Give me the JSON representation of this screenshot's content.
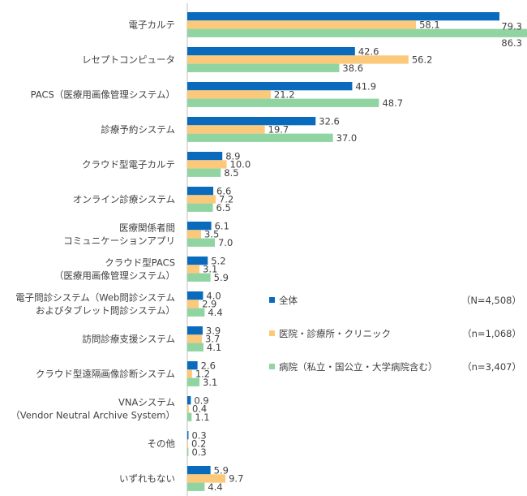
{
  "chart_data": {
    "type": "bar",
    "orientation": "horizontal",
    "categories": [
      [
        "電子カルテ"
      ],
      [
        "レセプトコンピュータ"
      ],
      [
        "PACS（医療用画像管理システム）"
      ],
      [
        "診療予約システム"
      ],
      [
        "クラウド型電子カルテ"
      ],
      [
        "オンライン診療システム"
      ],
      [
        "医療関係者間",
        "コミュニケーションアプリ"
      ],
      [
        "クラウド型PACS",
        "（医療用画像管理システム）"
      ],
      [
        "電子問診システム（Web問診システム",
        "およびタブレット問診システム）"
      ],
      [
        "訪問診療支援システム"
      ],
      [
        "クラウド型遠隔画像診断システム"
      ],
      [
        "VNAシステム",
        "（Vendor Neutral Archive System）"
      ],
      [
        "その他"
      ],
      [
        "いずれもない"
      ]
    ],
    "series": [
      {
        "name": "全体",
        "n_label": "（N=4,508）",
        "color": "#0a6bbd",
        "values": [
          79.3,
          42.6,
          41.9,
          32.6,
          8.9,
          6.6,
          6.1,
          5.2,
          4.0,
          3.9,
          2.6,
          0.9,
          0.3,
          5.9
        ]
      },
      {
        "name": "医院・診療所・クリニック",
        "n_label": "（n=1,068）",
        "color": "#fcc97b",
        "values": [
          58.1,
          56.2,
          21.2,
          19.7,
          10.0,
          7.2,
          3.5,
          3.1,
          2.9,
          3.7,
          1.2,
          0.4,
          0.2,
          9.7
        ]
      },
      {
        "name": "病院（私立・国公立・大学病院含む）",
        "n_label": "（n=3,407）",
        "color": "#8fd4a1",
        "values": [
          86.3,
          38.6,
          48.7,
          37.0,
          8.5,
          6.5,
          7.0,
          5.9,
          4.4,
          4.1,
          3.1,
          1.1,
          0.3,
          4.4
        ]
      }
    ],
    "xlim": [
      0,
      86.3
    ],
    "legend_position": "right-middle",
    "grid": false
  }
}
